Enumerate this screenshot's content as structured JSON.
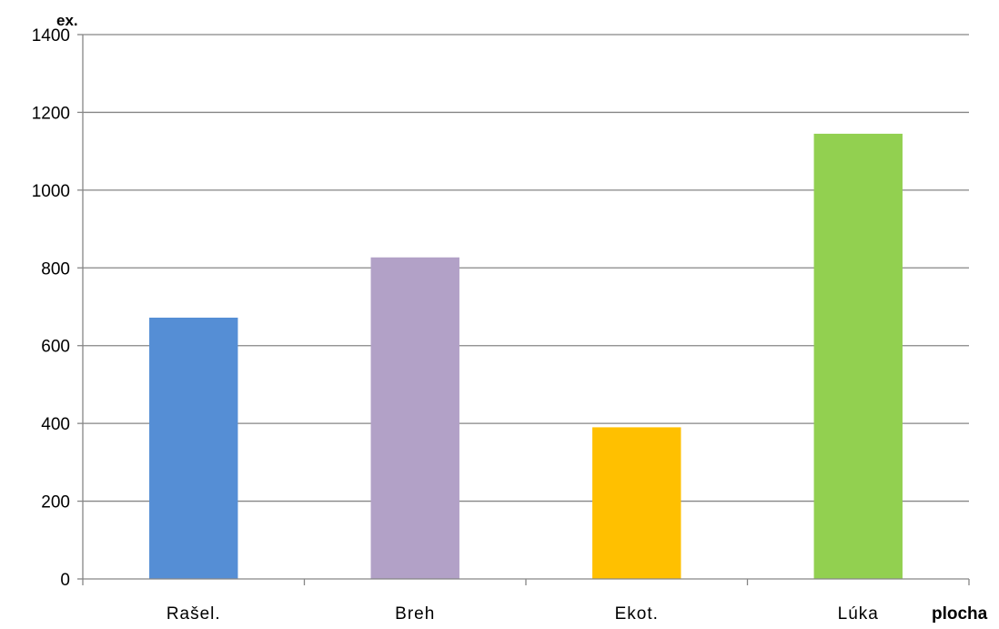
{
  "chart_data": {
    "type": "bar",
    "categories": [
      "Rašel.",
      "Breh",
      "Ekot.",
      "Lúka"
    ],
    "values": [
      672,
      827,
      390,
      1145
    ],
    "colors": [
      "#558ed5",
      "#b2a1c7",
      "#ffc000",
      "#92d050"
    ],
    "title": "",
    "xlabel": "plocha",
    "ylabel": "ex.",
    "ylim": [
      0,
      1400
    ],
    "yticks": [
      0,
      200,
      400,
      600,
      800,
      1000,
      1200,
      1400
    ],
    "grid": true,
    "gridline_color": "#868686",
    "legend": "none"
  }
}
